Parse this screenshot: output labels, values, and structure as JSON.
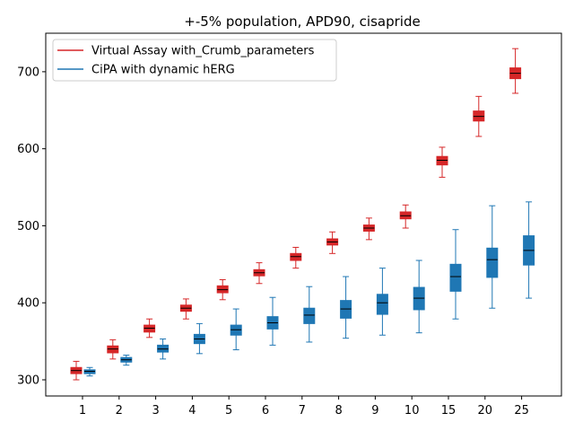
{
  "chart_data": {
    "type": "box",
    "title": "+-5% population, APD90, cisapride",
    "xlabel": "",
    "ylabel": "",
    "categories": [
      "1",
      "2",
      "3",
      "4",
      "5",
      "6",
      "7",
      "8",
      "9",
      "10",
      "15",
      "20",
      "25"
    ],
    "ylim": [
      279,
      750
    ],
    "yticks": [
      300,
      400,
      500,
      600,
      700
    ],
    "grid": false,
    "legend_position": "top-left",
    "series": [
      {
        "name": "Virtual Assay with_Crumb_parameters",
        "color": "#d62728",
        "boxes": [
          {
            "min": 300,
            "q1": 308,
            "median": 312,
            "q3": 316,
            "max": 324
          },
          {
            "min": 327,
            "q1": 335,
            "median": 340,
            "q3": 344,
            "max": 352
          },
          {
            "min": 355,
            "q1": 362,
            "median": 367,
            "q3": 371,
            "max": 379
          },
          {
            "min": 379,
            "q1": 389,
            "median": 393,
            "q3": 397,
            "max": 405
          },
          {
            "min": 404,
            "q1": 413,
            "median": 417,
            "q3": 422,
            "max": 430
          },
          {
            "min": 425,
            "q1": 435,
            "median": 439,
            "q3": 443,
            "max": 452
          },
          {
            "min": 445,
            "q1": 455,
            "median": 460,
            "q3": 464,
            "max": 472
          },
          {
            "min": 464,
            "q1": 475,
            "median": 479,
            "q3": 483,
            "max": 492
          },
          {
            "min": 482,
            "q1": 493,
            "median": 497,
            "q3": 501,
            "max": 510
          },
          {
            "min": 497,
            "q1": 509,
            "median": 513,
            "q3": 518,
            "max": 527
          },
          {
            "min": 563,
            "q1": 579,
            "median": 585,
            "q3": 590,
            "max": 602
          },
          {
            "min": 616,
            "q1": 636,
            "median": 642,
            "q3": 649,
            "max": 668
          },
          {
            "min": 672,
            "q1": 691,
            "median": 698,
            "q3": 705,
            "max": 730
          }
        ]
      },
      {
        "name": "CiPA with dynamic hERG",
        "color": "#1f77b4",
        "boxes": [
          {
            "min": 305,
            "q1": 308,
            "median": 311,
            "q3": 313,
            "max": 316
          },
          {
            "min": 319,
            "q1": 323,
            "median": 326,
            "q3": 329,
            "max": 332
          },
          {
            "min": 327,
            "q1": 336,
            "median": 340,
            "q3": 345,
            "max": 353
          },
          {
            "min": 334,
            "q1": 347,
            "median": 353,
            "q3": 359,
            "max": 373
          },
          {
            "min": 339,
            "q1": 358,
            "median": 365,
            "q3": 371,
            "max": 392
          },
          {
            "min": 345,
            "q1": 366,
            "median": 374,
            "q3": 382,
            "max": 407
          },
          {
            "min": 349,
            "q1": 373,
            "median": 384,
            "q3": 393,
            "max": 421
          },
          {
            "min": 354,
            "q1": 380,
            "median": 392,
            "q3": 403,
            "max": 434
          },
          {
            "min": 358,
            "q1": 385,
            "median": 400,
            "q3": 411,
            "max": 445
          },
          {
            "min": 361,
            "q1": 391,
            "median": 406,
            "q3": 420,
            "max": 455
          },
          {
            "min": 379,
            "q1": 415,
            "median": 434,
            "q3": 450,
            "max": 495
          },
          {
            "min": 393,
            "q1": 433,
            "median": 456,
            "q3": 471,
            "max": 526
          },
          {
            "min": 406,
            "q1": 449,
            "median": 468,
            "q3": 487,
            "max": 531
          }
        ]
      }
    ]
  }
}
